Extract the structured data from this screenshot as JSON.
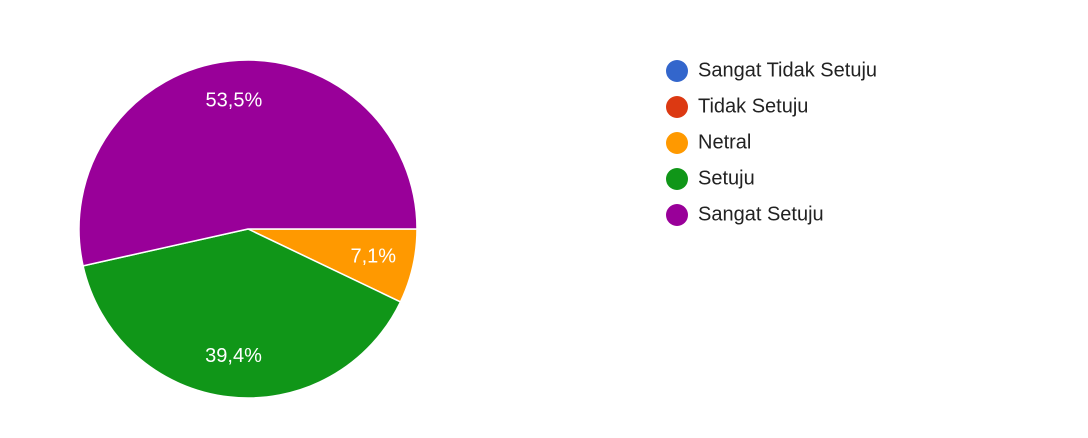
{
  "chart_data": {
    "type": "pie",
    "categories": [
      "Sangat Tidak Setuju",
      "Tidak Setuju",
      "Netral",
      "Setuju",
      "Sangat Setuju"
    ],
    "values": [
      0,
      0,
      7.1,
      39.4,
      53.5
    ],
    "value_labels": [
      null,
      null,
      "7,1%",
      "39,4%",
      "53,5%"
    ],
    "colors": [
      "#3366cc",
      "#dc3912",
      "#ff9900",
      "#109618",
      "#990099"
    ],
    "legend": "right"
  }
}
